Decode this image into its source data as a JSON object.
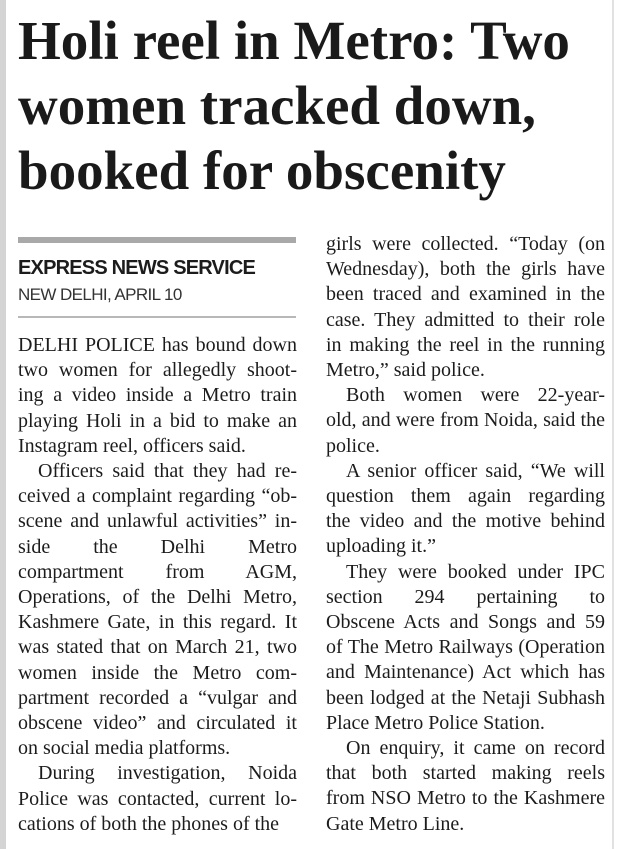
{
  "headline": {
    "lines": [
      "Holi reel in Metro: Two",
      "women tracked down,",
      "booked for obscenity"
    ]
  },
  "byline": "EXPRESS NEWS SERVICE",
  "dateline": "NEW DELHI, APRIL 10",
  "columns": [
    {
      "paragraphs": [
        {
          "indent": false,
          "lines": [
            "DELHI POLICE has bound down",
            "two women for allegedly shoot-",
            "ing a video inside a Metro train",
            "playing Holi in a bid to make an",
            "Instagram reel, officers said."
          ]
        },
        {
          "indent": true,
          "lines": [
            "Officers said that they had re-",
            "ceived a complaint regarding “ob-",
            "scene and unlawful activities” in-",
            "side the Delhi Metro",
            "compartment from AGM,",
            "Operations, of the Delhi Metro,",
            "Kashmere Gate, in this regard. It",
            "was stated that on March 21, two",
            "women inside the Metro com-",
            "partment recorded a “vulgar and",
            "obscene video” and circulated it",
            "on social media platforms."
          ]
        },
        {
          "indent": true,
          "continues": true,
          "lines": [
            "During investigation, Noida",
            "Police was contacted, current lo-",
            "cations of both the phones of the"
          ]
        }
      ]
    },
    {
      "paragraphs": [
        {
          "indent": false,
          "lines": [
            "girls were collected. “Today (on",
            "Wednesday), both the girls have",
            "been traced and examined in the",
            "case. They admitted to their role",
            "in making the reel in the running",
            "Metro,” said police."
          ]
        },
        {
          "indent": true,
          "lines": [
            "Both women were 22-year-",
            "old, and were from Noida, said the",
            "police."
          ]
        },
        {
          "indent": true,
          "lines": [
            "A senior officer said, “We will",
            "question them again regarding",
            "the video and the motive behind",
            "uploading it.”"
          ]
        },
        {
          "indent": true,
          "lines": [
            "They were booked under IPC",
            "section 294 pertaining to",
            "Obscene Acts and Songs and 59",
            "of The Metro Railways (Operation",
            "and Maintenance) Act which has",
            "been lodged at the Netaji Subhash",
            "Place Metro Police Station."
          ]
        },
        {
          "indent": true,
          "lines": [
            "On enquiry, it came on record",
            "that both started making reels",
            "from NSO Metro to the Kashmere",
            "Gate Metro Line."
          ]
        }
      ]
    }
  ]
}
